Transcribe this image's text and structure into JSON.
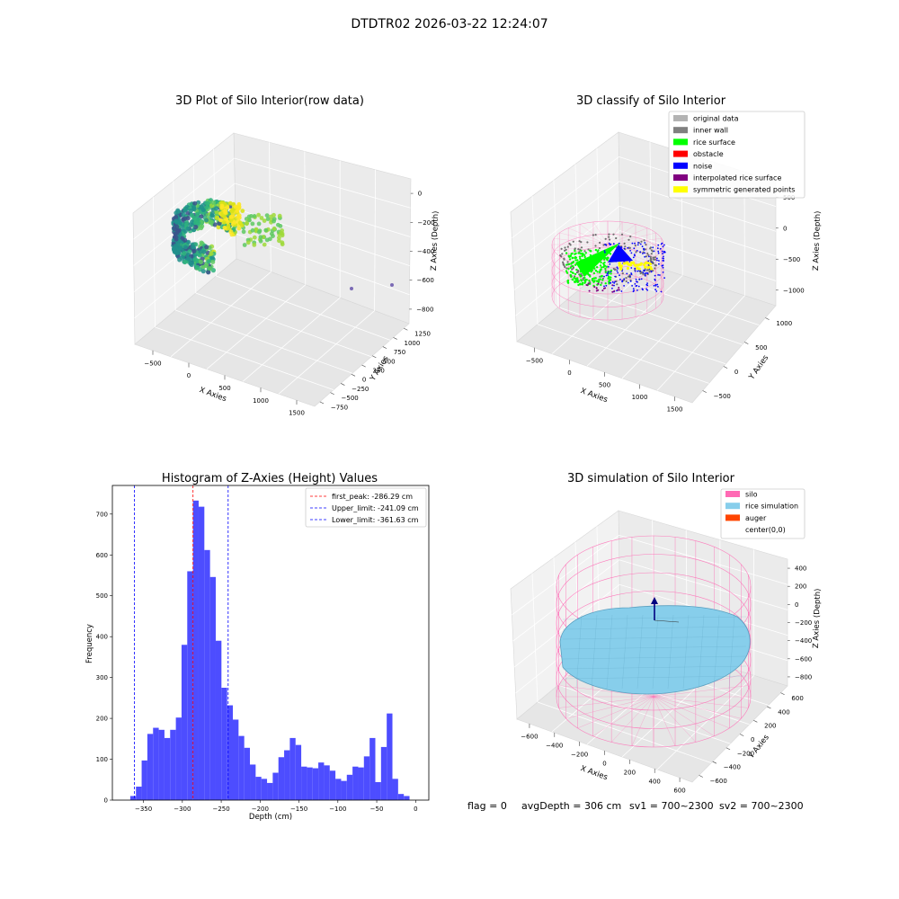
{
  "suptitle": "DTDTR02 2026-03-22 12:24:07",
  "footer": {
    "flag": "flag = 0",
    "avg_depth": "avgDepth = 306 cm",
    "sv1": "sv1 = 700~2300",
    "sv2": "sv2 = 700~2300"
  },
  "chart_data": [
    {
      "type": "scatter",
      "kind": "3d",
      "title": "3D Plot of Silo Interior(row data)",
      "xlabel": "X Axies",
      "ylabel": "Y Axies",
      "zlabel": "Z Axies (Depth)",
      "x_ticks": [
        "−500",
        "0",
        "500",
        "1000",
        "1500"
      ],
      "y_ticks": [
        "−750",
        "−500",
        "−250",
        "0",
        "250",
        "500",
        "750",
        "1000",
        "1250"
      ],
      "z_ticks": [
        "−800",
        "−600",
        "−400",
        "−200",
        "0"
      ],
      "colormap": "viridis",
      "grid": true
    },
    {
      "type": "scatter",
      "kind": "3d",
      "title": "3D classify of Silo Interior",
      "xlabel": "X Axies",
      "ylabel": "Y Axies",
      "zlabel": "Z Axies (Depth)",
      "x_ticks": [
        "−500",
        "0",
        "500",
        "1000",
        "1500"
      ],
      "y_ticks": [
        "−500",
        "0",
        "500",
        "1000"
      ],
      "z_ticks": [
        "−1000",
        "−500",
        "0",
        "500"
      ],
      "legend_position": "top-right",
      "legend": [
        {
          "label": "original data",
          "color": "#b3b3b3"
        },
        {
          "label": "inner wall",
          "color": "#808080"
        },
        {
          "label": "rice surface",
          "color": "#00ff00"
        },
        {
          "label": "obstacle",
          "color": "#ff0000"
        },
        {
          "label": "noise",
          "color": "#0000ff"
        },
        {
          "label": "interpolated rice surface",
          "color": "#800080"
        },
        {
          "label": "symmetric generated points",
          "color": "#ffff00"
        }
      ],
      "grid": true
    },
    {
      "type": "bar",
      "kind": "histogram",
      "title": "Histogram of Z-Axies (Height) Values",
      "xlabel": "Depth (cm)",
      "ylabel": "Frequency",
      "xlim": [
        -390,
        17
      ],
      "ylim": [
        0,
        770
      ],
      "bar_color": "#4d4dff",
      "bin_start": -367,
      "bin_width": 7.33,
      "values": [
        10,
        33,
        97,
        162,
        177,
        172,
        152,
        172,
        202,
        380,
        560,
        733,
        718,
        612,
        546,
        390,
        275,
        232,
        197,
        157,
        128,
        87,
        57,
        52,
        42,
        67,
        105,
        122,
        152,
        135,
        82,
        80,
        78,
        92,
        85,
        72,
        52,
        47,
        62,
        82,
        80,
        107,
        152,
        44,
        130,
        212,
        52,
        15,
        10
      ],
      "x_ticks": [
        -350,
        -300,
        -250,
        -200,
        -150,
        -100,
        -50,
        0
      ],
      "y_ticks": [
        0,
        100,
        200,
        300,
        400,
        500,
        600,
        700
      ],
      "lines": [
        {
          "label": "first_peak: -286.29 cm",
          "x": -286.29,
          "color": "#ff0000"
        },
        {
          "label": "Upper_limit: -241.09 cm",
          "x": -241.09,
          "color": "#0000ff"
        },
        {
          "label": "Lower_limit: -361.63 cm",
          "x": -361.63,
          "color": "#0000ff"
        }
      ],
      "legend_position": "top-right",
      "grid": false
    },
    {
      "type": "scatter",
      "kind": "3d-surface",
      "title": "3D simulation of Silo Interior",
      "xlabel": "X Axies",
      "ylabel": "Y Axies",
      "zlabel": "Z Axies (Depth)",
      "x_ticks": [
        "−600",
        "−400",
        "−200",
        "0",
        "200",
        "400",
        "600"
      ],
      "y_ticks": [
        "−600",
        "−400",
        "−200",
        "0",
        "200",
        "400",
        "600"
      ],
      "z_ticks": [
        "−800",
        "−600",
        "−400",
        "−200",
        "0",
        "200",
        "400"
      ],
      "legend_position": "top-right",
      "legend": [
        {
          "label": "silo",
          "color": "#ff69b4"
        },
        {
          "label": "rice simulation",
          "color": "#87ceeb"
        },
        {
          "label": "auger",
          "color": "#ff4500"
        },
        {
          "label": "center(0,0)",
          "color": "#ffffff"
        }
      ],
      "grid": true
    }
  ]
}
